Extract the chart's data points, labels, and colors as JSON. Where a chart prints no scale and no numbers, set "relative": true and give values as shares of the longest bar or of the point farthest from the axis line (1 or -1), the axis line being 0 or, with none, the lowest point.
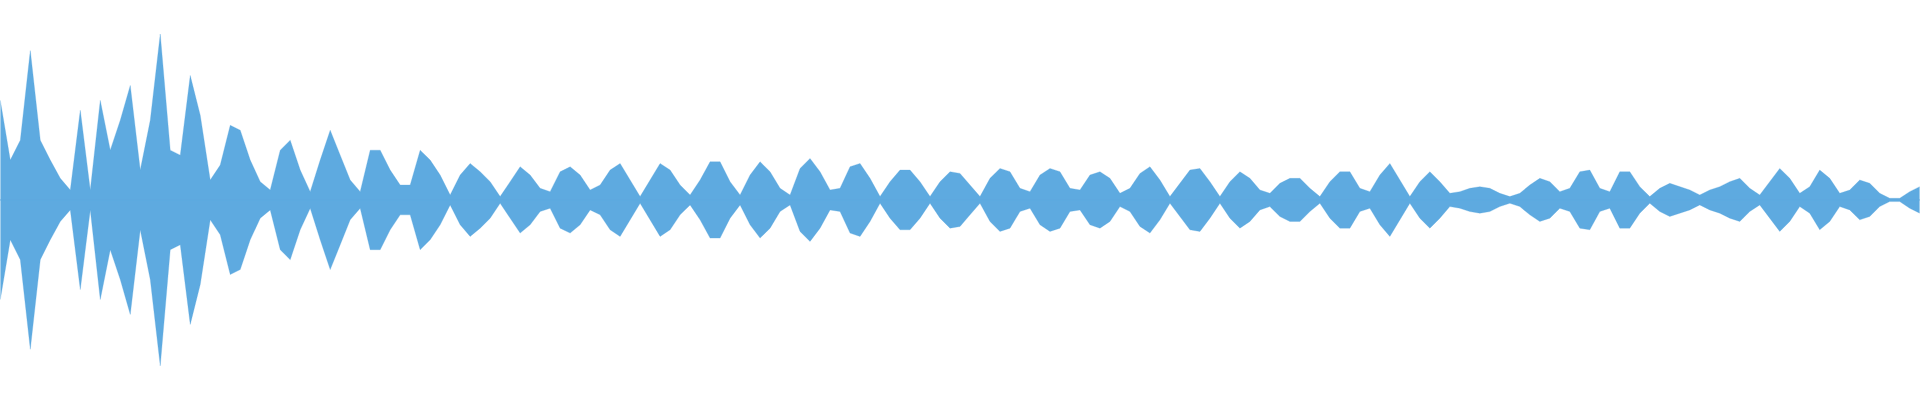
{
  "chart_data": {
    "type": "area",
    "relative": true,
    "ref_lines": [
      {
        "axis": "y",
        "value": 0,
        "color": "#5eaae0"
      }
    ],
    "categories": [
      null,
      null,
      null,
      null,
      null,
      null,
      null,
      null,
      null,
      null,
      null,
      null,
      null,
      null,
      null,
      null,
      null,
      null,
      null,
      null,
      null,
      null,
      null,
      null,
      null,
      null,
      null,
      null,
      null,
      null,
      null,
      null,
      null,
      null,
      null,
      null,
      null,
      null,
      null,
      null,
      null,
      null,
      null,
      null,
      null,
      null,
      null,
      null,
      null,
      null,
      null,
      null,
      null,
      null,
      null,
      null,
      null,
      null,
      null,
      null,
      null,
      null,
      null,
      null,
      null,
      null,
      null,
      null,
      null,
      null,
      null,
      null,
      null,
      null,
      null,
      null,
      null,
      null,
      null,
      null,
      null,
      null,
      null,
      null,
      null,
      null,
      null,
      null,
      null,
      null,
      null,
      null,
      null,
      null,
      null,
      null,
      null,
      null,
      null,
      null,
      null,
      null,
      null,
      null,
      null,
      null,
      null,
      null,
      null,
      null,
      null,
      null,
      null,
      null,
      null,
      null,
      null,
      null,
      null,
      null,
      null,
      null,
      null,
      null,
      null,
      null,
      null,
      null,
      null,
      null,
      null,
      null,
      null,
      null,
      null,
      null,
      null,
      null,
      null,
      null,
      null,
      null,
      null,
      null,
      null,
      null,
      null,
      null,
      null,
      null,
      null,
      null,
      null,
      null,
      null,
      null,
      null,
      null,
      null,
      null,
      null,
      null,
      null,
      null,
      null,
      null,
      null,
      null,
      null,
      null,
      null,
      null,
      null,
      null,
      null,
      null,
      null,
      null,
      null,
      null,
      null,
      null,
      null,
      null,
      null,
      null,
      null,
      null,
      null,
      null,
      null,
      null,
      null
    ],
    "series": [
      {
        "color": "#5eaae0",
        "values": [
          0.6,
          0.24,
          0.36,
          0.9,
          0.36,
          0.24,
          0.13,
          0.06,
          0.54,
          0.06,
          0.6,
          0.3,
          0.48,
          0.69,
          0.18,
          0.48,
          1,
          0.3,
          0.27,
          0.75,
          0.51,
          0.12,
          0.21,
          0.45,
          0.42,
          0.24,
          0.11,
          0.06,
          0.3,
          0.36,
          0.18,
          0.05,
          0.24,
          0.42,
          0.27,
          0.12,
          0.05,
          0.3,
          0.3,
          0.18,
          0.09,
          0.09,
          0.3,
          0.24,
          0.15,
          0.03,
          0.15,
          0.22,
          0.17,
          0.11,
          0.02,
          0.11,
          0.2,
          0.15,
          0.07,
          0.05,
          0.17,
          0.2,
          0.15,
          0.06,
          0.09,
          0.18,
          0.22,
          0.12,
          0.02,
          0.12,
          0.22,
          0.18,
          0.09,
          0.03,
          0.12,
          0.23,
          0.23,
          0.11,
          0.03,
          0.15,
          0.23,
          0.17,
          0.07,
          0.03,
          0.19,
          0.25,
          0.17,
          0.06,
          0.07,
          0.2,
          0.22,
          0.13,
          0.02,
          0.11,
          0.18,
          0.18,
          0.11,
          0.02,
          0.11,
          0.17,
          0.16,
          0.09,
          0.02,
          0.13,
          0.19,
          0.17,
          0.07,
          0.05,
          0.15,
          0.19,
          0.17,
          0.07,
          0.06,
          0.15,
          0.17,
          0.13,
          0.04,
          0.07,
          0.16,
          0.2,
          0.12,
          0.02,
          0.1,
          0.18,
          0.19,
          0.11,
          0.02,
          0.11,
          0.17,
          0.13,
          0.06,
          0.04,
          0.1,
          0.13,
          0.13,
          0.07,
          0.02,
          0.11,
          0.17,
          0.17,
          0.07,
          0.05,
          0.15,
          0.22,
          0.12,
          0.02,
          0.11,
          0.17,
          0.11,
          0.04,
          0.05,
          0.07,
          0.08,
          0.07,
          0.04,
          0.02,
          0.04,
          0.09,
          0.13,
          0.11,
          0.05,
          0.07,
          0.17,
          0.18,
          0.07,
          0.05,
          0.17,
          0.17,
          0.08,
          0.02,
          0.07,
          0.1,
          0.08,
          0.06,
          0.03,
          0.06,
          0.08,
          0.11,
          0.13,
          0.07,
          0.03,
          0.11,
          0.19,
          0.13,
          0.04,
          0.08,
          0.18,
          0.13,
          0.04,
          0.06,
          0.12,
          0.1,
          0.04,
          0.01,
          0.01,
          0.05,
          0.08
        ]
      },
      {
        "color": "#5eaae0",
        "values": [
          -0.6,
          -0.24,
          -0.36,
          -0.9,
          -0.36,
          -0.24,
          -0.13,
          -0.06,
          -0.54,
          -0.06,
          -0.6,
          -0.3,
          -0.48,
          -0.69,
          -0.18,
          -0.48,
          -1,
          -0.3,
          -0.27,
          -0.75,
          -0.51,
          -0.12,
          -0.21,
          -0.45,
          -0.42,
          -0.24,
          -0.11,
          -0.06,
          -0.3,
          -0.36,
          -0.18,
          -0.05,
          -0.24,
          -0.42,
          -0.27,
          -0.12,
          -0.05,
          -0.3,
          -0.3,
          -0.18,
          -0.09,
          -0.09,
          -0.3,
          -0.24,
          -0.15,
          -0.03,
          -0.15,
          -0.22,
          -0.17,
          -0.11,
          -0.02,
          -0.11,
          -0.2,
          -0.15,
          -0.07,
          -0.05,
          -0.17,
          -0.2,
          -0.15,
          -0.06,
          -0.09,
          -0.18,
          -0.22,
          -0.12,
          -0.02,
          -0.12,
          -0.22,
          -0.18,
          -0.09,
          -0.03,
          -0.12,
          -0.23,
          -0.23,
          -0.11,
          -0.03,
          -0.15,
          -0.23,
          -0.17,
          -0.07,
          -0.03,
          -0.19,
          -0.25,
          -0.17,
          -0.06,
          -0.07,
          -0.2,
          -0.22,
          -0.13,
          -0.02,
          -0.11,
          -0.18,
          -0.18,
          -0.11,
          -0.02,
          -0.11,
          -0.17,
          -0.16,
          -0.09,
          -0.02,
          -0.13,
          -0.19,
          -0.17,
          -0.07,
          -0.05,
          -0.15,
          -0.19,
          -0.17,
          -0.07,
          -0.06,
          -0.15,
          -0.17,
          -0.13,
          -0.04,
          -0.07,
          -0.16,
          -0.2,
          -0.12,
          -0.02,
          -0.1,
          -0.18,
          -0.19,
          -0.11,
          -0.02,
          -0.11,
          -0.17,
          -0.13,
          -0.06,
          -0.04,
          -0.1,
          -0.13,
          -0.13,
          -0.07,
          -0.02,
          -0.11,
          -0.17,
          -0.17,
          -0.07,
          -0.05,
          -0.15,
          -0.22,
          -0.12,
          -0.02,
          -0.11,
          -0.17,
          -0.11,
          -0.04,
          -0.05,
          -0.07,
          -0.08,
          -0.07,
          -0.04,
          -0.02,
          -0.04,
          -0.09,
          -0.13,
          -0.11,
          -0.05,
          -0.07,
          -0.17,
          -0.18,
          -0.07,
          -0.05,
          -0.17,
          -0.17,
          -0.08,
          -0.02,
          -0.07,
          -0.1,
          -0.08,
          -0.06,
          -0.03,
          -0.06,
          -0.08,
          -0.11,
          -0.13,
          -0.07,
          -0.03,
          -0.11,
          -0.19,
          -0.13,
          -0.04,
          -0.08,
          -0.18,
          -0.13,
          -0.04,
          -0.06,
          -0.12,
          -0.1,
          -0.04,
          -0.01,
          -0.01,
          -0.05,
          -0.08
        ]
      }
    ]
  }
}
